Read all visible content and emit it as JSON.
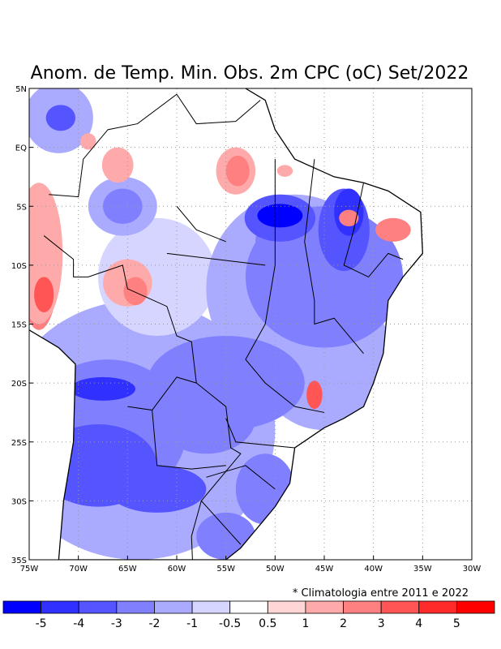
{
  "title": "Anom. de Temp. Min. Obs. 2m CPC (oC) Set/2022",
  "note": "* Climatologia entre 2011 e 2022",
  "chart_data": {
    "type": "heatmap",
    "title": "Anom. de Temp. Min. Obs. 2m CPC (oC) Set/2022",
    "lon_range": [
      -75,
      -30
    ],
    "lat_range": [
      -35,
      5
    ],
    "lon_ticks": [
      "75W",
      "70W",
      "65W",
      "60W",
      "55W",
      "50W",
      "45W",
      "40W",
      "35W",
      "30W"
    ],
    "lat_ticks": [
      "5N",
      "EQ",
      "5S",
      "10S",
      "15S",
      "20S",
      "25S",
      "30S",
      "35S"
    ],
    "grid": true,
    "colorbar": {
      "labels": [
        "-5",
        "-4",
        "-3",
        "-2",
        "-1",
        "-0.5",
        "0.5",
        "1",
        "2",
        "3",
        "4",
        "5"
      ],
      "colors": [
        "#0000ff",
        "#3030ff",
        "#5555ff",
        "#8080ff",
        "#aaaaff",
        "#d5d5ff",
        "#ffffff",
        "#ffd5d5",
        "#ffaaaa",
        "#ff8080",
        "#ff5555",
        "#ff2a2a",
        "#ff0000"
      ]
    }
  }
}
